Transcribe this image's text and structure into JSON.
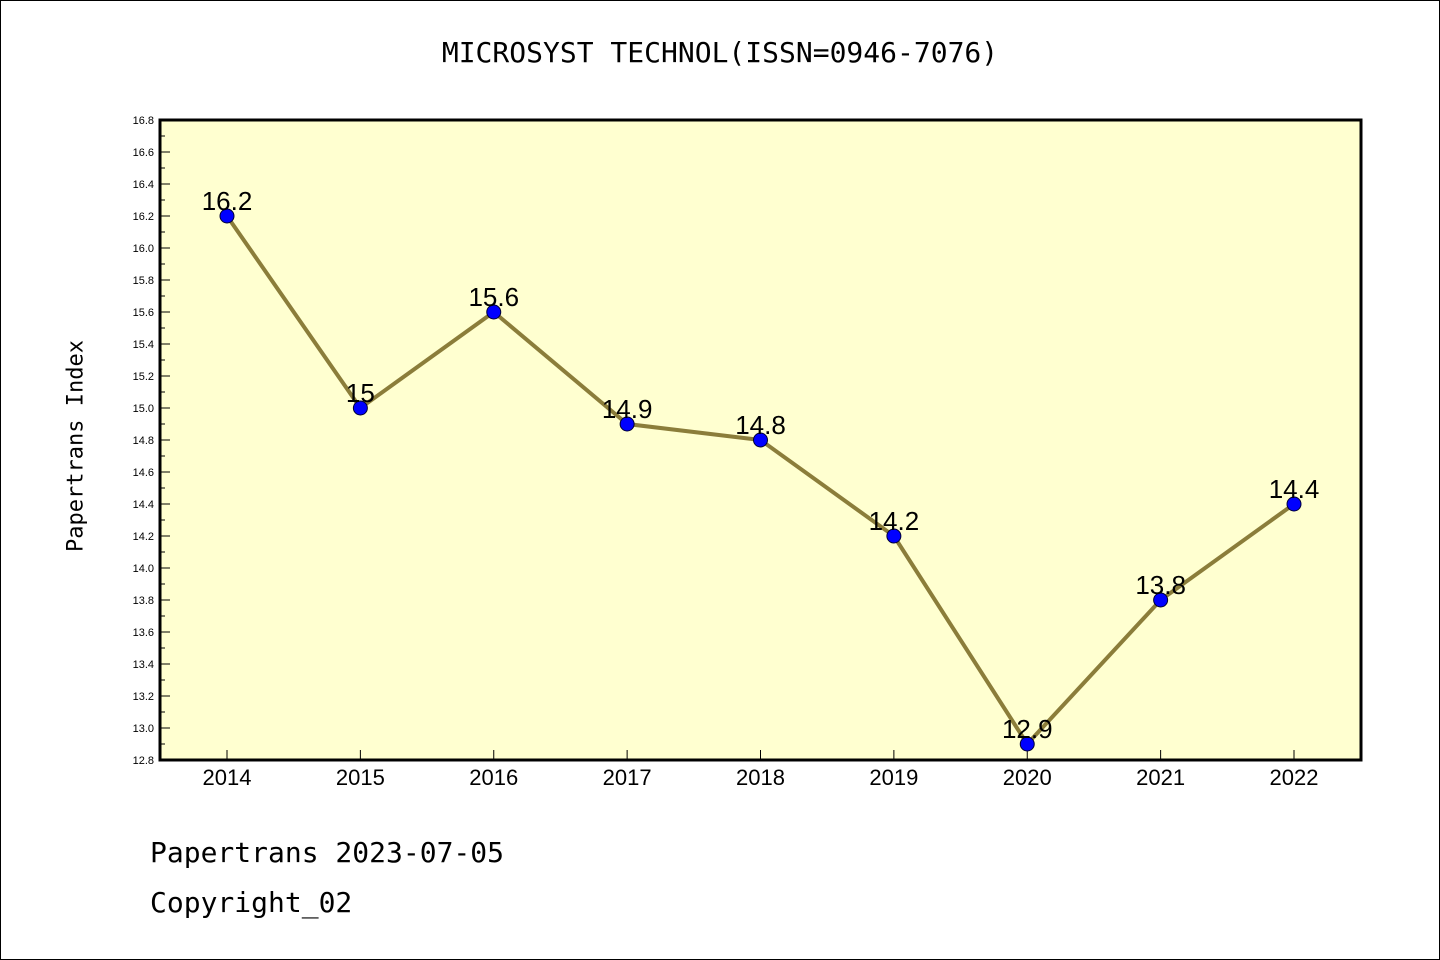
{
  "chart_data": {
    "type": "line",
    "title": "MICROSYST TECHNOL(ISSN=0946-7076)",
    "xlabel": "",
    "ylabel": "Papertrans Index",
    "categories": [
      "2014",
      "2015",
      "2016",
      "2017",
      "2018",
      "2019",
      "2020",
      "2021",
      "2022"
    ],
    "series": [
      {
        "values": [
          16.2,
          15,
          15.6,
          14.9,
          14.8,
          14.2,
          12.9,
          13.8,
          14.4
        ],
        "labels": [
          "16.2",
          "15",
          "15.6",
          "14.9",
          "14.8",
          "14.2",
          "12.9",
          "13.8",
          "14.4"
        ]
      }
    ],
    "ylim": [
      12.8,
      16.8
    ],
    "yticks": [
      "12.8",
      "13.0",
      "13.2",
      "13.4",
      "13.6",
      "13.8",
      "14.0",
      "14.2",
      "14.4",
      "14.6",
      "14.8",
      "15.0",
      "15.2",
      "15.4",
      "15.6",
      "15.8",
      "16.0",
      "16.2",
      "16.4",
      "16.6",
      "16.8"
    ],
    "grid": false,
    "legend": "none",
    "colors": {
      "plot_background": "#ffffd0",
      "line": "#8b7d3a",
      "marker": "#0000ff"
    }
  },
  "footer": {
    "date_text": "Papertrans 2023-07-05",
    "copyright_text": "Copyright_02"
  }
}
